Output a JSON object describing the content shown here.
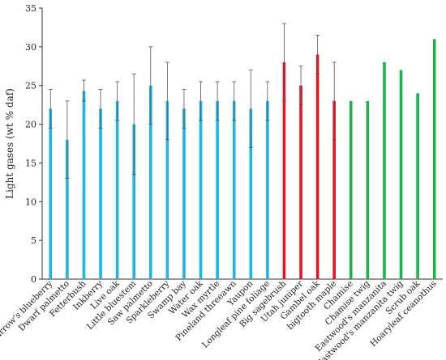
{
  "chart_data": {
    "type": "bar",
    "ylabel": "Light gases (wt % daf)",
    "ylim": [
      0,
      35
    ],
    "yticks": [
      0,
      5,
      10,
      15,
      20,
      25,
      30,
      35
    ],
    "grid": false,
    "colors": {
      "blue": "#1fb3e6",
      "red": "#e8141e",
      "green": "#1db34a"
    },
    "categories": [
      "Darrow's blueberry",
      "Dwarf palmetto",
      "Fetterbush",
      "Inkberry",
      "Live oak",
      "Little bluestem",
      "Saw palmetto",
      "Sparkleberry",
      "Swamp bay",
      "Water oak",
      "Wax myrtle",
      "Pineland threeawn",
      "Yaupon",
      "Longleaf pine foliage",
      "Big sagebrush",
      "Utah juniper",
      "Gambel oak",
      "bigtooth maple",
      "Chamise",
      "Chamise twig",
      "Eastwood's manzanita",
      "Eastwood's manzanita twig",
      "Scrub oak",
      "Hoaryleaf ceanothus"
    ],
    "values": [
      22,
      18,
      24.3,
      22,
      23,
      20,
      25,
      23,
      22,
      23,
      23,
      23,
      22,
      23,
      28,
      25,
      29,
      23,
      23,
      23,
      28,
      27,
      24,
      31
    ],
    "error_low": [
      19.5,
      13,
      23,
      19.5,
      20.5,
      13.5,
      20,
      18,
      19.5,
      20.5,
      20.5,
      20.5,
      17,
      20.5,
      23,
      22.5,
      26.5,
      18,
      null,
      null,
      null,
      null,
      null,
      null
    ],
    "error_high": [
      24.5,
      23,
      25.7,
      24.5,
      25.5,
      26.5,
      30,
      28,
      24.5,
      25.5,
      25.5,
      25.5,
      27,
      25.5,
      33,
      27.5,
      31.5,
      28,
      null,
      null,
      null,
      null,
      null,
      null
    ],
    "bar_colors": [
      "blue",
      "blue",
      "blue",
      "blue",
      "blue",
      "blue",
      "blue",
      "blue",
      "blue",
      "blue",
      "blue",
      "blue",
      "blue",
      "blue",
      "red",
      "red",
      "red",
      "red",
      "green",
      "green",
      "green",
      "green",
      "green",
      "green"
    ]
  }
}
